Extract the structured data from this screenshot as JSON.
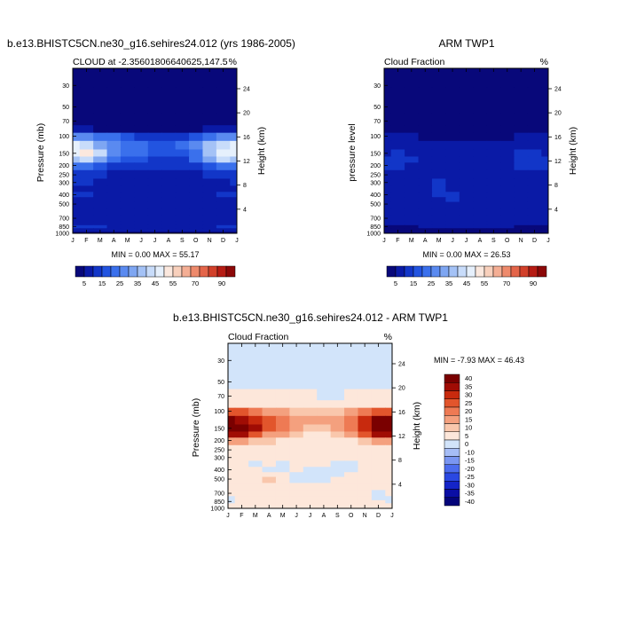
{
  "colors": {
    "sequential": [
      "#08087a",
      "#0a1aa6",
      "#1236c8",
      "#2254e0",
      "#3a70ec",
      "#5a8af0",
      "#7ea6f2",
      "#a4c2f6",
      "#c8dcfa",
      "#e6f0fc",
      "#fbe8de",
      "#f8d0bc",
      "#f4ae94",
      "#ee8a6c",
      "#e4654a",
      "#d2402a",
      "#b61c14",
      "#8c0808"
    ],
    "diverging": [
      "#04047a",
      "#0a0ea4",
      "#1424c8",
      "#2a48e2",
      "#4c6cee",
      "#7a96f2",
      "#a6bdf6",
      "#d2e4fa",
      "#fde7da",
      "#f9c7ac",
      "#f4a07e",
      "#ee7a54",
      "#e2552c",
      "#c82a0e",
      "#a00c04",
      "#7a0000"
    ]
  },
  "panels": [
    {
      "title_main": "b.e13.BHISTC5CN.ne30_g16.sehires24.012 (yrs 1986-2005)",
      "title_left": "CLOUD at -2.35601806640625,147.5",
      "title_right": "%",
      "ylabel": "Pressure (mb)",
      "ylabel_right": "Height (km)",
      "minmax": "MIN =   0.00 MAX =  55.17"
    },
    {
      "title_main": "ARM TWP1",
      "title_left": "Cloud Fraction",
      "title_right": "%",
      "ylabel": "pressure level",
      "ylabel_right": "Height (km)",
      "minmax": "MIN =   0.00 MAX =  26.53"
    },
    {
      "title_main": "b.e13.BHISTC5CN.ne30_g16.sehires24.012 - ARM TWP1",
      "title_left": "Cloud Fraction",
      "title_right": "%",
      "ylabel": "Pressure (mb)",
      "ylabel_right": "Height (km)",
      "minmax": "MIN =  -7.93 MAX =  46.43"
    }
  ],
  "chart_data": [
    {
      "type": "heatmap",
      "title": "CLOUD at -2.35601806640625,147.5",
      "xlabel": "",
      "ylabel": "Pressure (mb)",
      "ylabel_right": "Height (km)",
      "x_ticks": [
        "J",
        "F",
        "M",
        "A",
        "M",
        "J",
        "J",
        "A",
        "S",
        "O",
        "N",
        "D",
        "J"
      ],
      "y_ticks": [
        30,
        50,
        70,
        100,
        150,
        200,
        250,
        300,
        400,
        500,
        700,
        850,
        1000
      ],
      "y_right_ticks": [
        24,
        20,
        16,
        12,
        8,
        4
      ],
      "ylim": [
        1000,
        20
      ],
      "y_scale": "log-pressure",
      "colorbar_labels": [
        "5",
        "15",
        "25",
        "35",
        "45",
        "55",
        "70",
        "90"
      ],
      "levels": [
        0,
        5,
        10,
        15,
        20,
        25,
        30,
        35,
        40,
        45,
        50,
        55,
        60,
        70,
        80,
        90
      ],
      "pressure": [
        20,
        50,
        70,
        85,
        100,
        125,
        150,
        175,
        200,
        250,
        300,
        350,
        400,
        450,
        500,
        600,
        700,
        800,
        850,
        925,
        1000
      ],
      "values": [
        [
          0,
          0,
          0,
          0,
          0,
          0,
          0,
          0,
          0,
          0,
          0,
          0,
          0
        ],
        [
          0,
          0,
          0,
          0,
          0,
          0,
          0,
          0,
          0,
          0,
          0,
          0,
          0
        ],
        [
          1,
          1,
          1,
          1,
          1,
          1,
          1,
          1,
          1,
          1,
          1,
          1,
          1
        ],
        [
          6,
          5,
          4,
          3,
          3,
          3,
          3,
          3,
          3,
          4,
          5,
          6,
          6
        ],
        [
          28,
          27,
          24,
          20,
          16,
          14,
          12,
          12,
          13,
          16,
          22,
          27,
          28
        ],
        [
          45,
          42,
          34,
          27,
          24,
          22,
          18,
          18,
          20,
          26,
          36,
          44,
          45
        ],
        [
          47,
          50,
          40,
          28,
          24,
          20,
          16,
          16,
          18,
          24,
          36,
          48,
          47
        ],
        [
          38,
          40,
          32,
          22,
          18,
          15,
          12,
          12,
          14,
          20,
          30,
          40,
          38
        ],
        [
          22,
          20,
          16,
          14,
          12,
          10,
          10,
          10,
          10,
          12,
          16,
          20,
          22
        ],
        [
          12,
          11,
          10,
          9,
          9,
          9,
          8,
          8,
          9,
          9,
          10,
          11,
          12
        ],
        [
          10,
          10,
          9,
          8,
          7,
          6,
          6,
          6,
          6,
          7,
          8,
          9,
          10
        ],
        [
          9,
          9,
          8,
          7,
          7,
          6,
          6,
          6,
          7,
          7,
          8,
          9,
          9
        ],
        [
          10,
          10,
          9,
          8,
          8,
          7,
          7,
          7,
          8,
          8,
          9,
          10,
          10
        ],
        [
          8,
          8,
          7,
          7,
          6,
          6,
          6,
          6,
          6,
          6,
          7,
          8,
          8
        ],
        [
          8,
          8,
          7,
          7,
          7,
          7,
          7,
          6,
          6,
          7,
          7,
          8,
          8
        ],
        [
          6,
          6,
          6,
          5,
          5,
          5,
          5,
          5,
          5,
          5,
          6,
          6,
          6
        ],
        [
          6,
          6,
          6,
          6,
          5,
          5,
          5,
          5,
          5,
          5,
          5,
          6,
          6
        ],
        [
          8,
          8,
          7,
          7,
          7,
          7,
          6,
          6,
          6,
          7,
          7,
          8,
          8
        ],
        [
          11,
          11,
          10,
          9,
          9,
          8,
          8,
          8,
          8,
          8,
          9,
          10,
          11
        ],
        [
          5,
          5,
          5,
          5,
          5,
          5,
          5,
          5,
          5,
          5,
          5,
          5,
          5
        ],
        [
          1,
          1,
          1,
          1,
          1,
          1,
          1,
          1,
          1,
          1,
          1,
          1,
          1
        ]
      ]
    },
    {
      "type": "heatmap",
      "title": "Cloud Fraction",
      "xlabel": "",
      "ylabel": "pressure level",
      "ylabel_right": "Height (km)",
      "x_ticks": [
        "J",
        "F",
        "M",
        "A",
        "M",
        "J",
        "J",
        "A",
        "S",
        "O",
        "N",
        "D",
        "J"
      ],
      "y_ticks": [
        30,
        50,
        70,
        100,
        150,
        200,
        250,
        300,
        400,
        500,
        700,
        850,
        1000
      ],
      "y_right_ticks": [
        24,
        20,
        16,
        12,
        8,
        4
      ],
      "ylim": [
        1000,
        20
      ],
      "y_scale": "log-pressure",
      "colorbar_labels": [
        "5",
        "15",
        "25",
        "35",
        "45",
        "55",
        "70",
        "90"
      ],
      "levels": [
        0,
        5,
        10,
        15,
        20,
        25,
        30,
        35,
        40,
        45,
        50,
        55,
        60,
        70,
        80,
        90
      ],
      "pressure": [
        20,
        50,
        70,
        85,
        100,
        125,
        150,
        175,
        200,
        250,
        300,
        350,
        400,
        450,
        500,
        600,
        700,
        800,
        850,
        925,
        1000
      ],
      "values": [
        [
          0,
          0,
          0,
          0,
          0,
          0,
          0,
          0,
          0,
          0,
          0,
          0,
          0
        ],
        [
          1,
          1,
          1,
          1,
          1,
          1,
          1,
          1,
          1,
          1,
          1,
          1,
          1
        ],
        [
          2,
          2,
          2,
          2,
          2,
          2,
          2,
          2,
          2,
          2,
          2,
          2,
          2
        ],
        [
          3,
          3,
          3,
          3,
          3,
          3,
          3,
          3,
          3,
          3,
          3,
          3,
          3
        ],
        [
          5,
          5,
          5,
          4,
          4,
          4,
          4,
          4,
          4,
          4,
          5,
          5,
          5
        ],
        [
          8,
          9,
          8,
          7,
          6,
          6,
          6,
          6,
          6,
          7,
          9,
          9,
          8
        ],
        [
          9,
          10,
          9,
          8,
          7,
          7,
          7,
          7,
          7,
          8,
          10,
          10,
          9
        ],
        [
          10,
          11,
          10,
          9,
          8,
          8,
          8,
          8,
          8,
          9,
          11,
          11,
          10
        ],
        [
          10,
          10,
          9,
          9,
          9,
          8,
          8,
          8,
          9,
          9,
          10,
          10,
          10
        ],
        [
          9,
          9,
          9,
          9,
          9,
          9,
          9,
          9,
          8,
          9,
          9,
          9,
          9
        ],
        [
          9,
          9,
          9,
          9,
          10,
          9,
          8,
          8,
          8,
          9,
          9,
          9,
          9
        ],
        [
          9,
          9,
          9,
          9,
          10,
          9,
          9,
          8,
          8,
          9,
          9,
          9,
          9
        ],
        [
          9,
          9,
          9,
          9,
          10,
          10,
          9,
          9,
          9,
          9,
          9,
          9,
          9
        ],
        [
          8,
          8,
          8,
          9,
          9,
          10,
          9,
          9,
          9,
          8,
          8,
          8,
          8
        ],
        [
          8,
          8,
          8,
          8,
          9,
          9,
          9,
          8,
          8,
          8,
          8,
          8,
          8
        ],
        [
          7,
          7,
          7,
          8,
          8,
          9,
          8,
          8,
          8,
          8,
          7,
          7,
          7
        ],
        [
          6,
          6,
          6,
          7,
          7,
          8,
          7,
          7,
          7,
          7,
          6,
          6,
          6
        ],
        [
          5,
          5,
          5,
          6,
          6,
          6,
          6,
          6,
          6,
          6,
          5,
          5,
          5
        ],
        [
          4,
          4,
          4,
          5,
          5,
          5,
          5,
          5,
          5,
          5,
          4,
          4,
          4
        ],
        [
          2,
          2,
          2,
          2,
          2,
          2,
          2,
          2,
          2,
          2,
          2,
          2,
          2
        ],
        [
          1,
          1,
          1,
          1,
          1,
          1,
          1,
          1,
          1,
          1,
          1,
          1,
          1
        ]
      ]
    },
    {
      "type": "heatmap",
      "title": "Cloud Fraction",
      "xlabel": "",
      "ylabel": "Pressure (mb)",
      "ylabel_right": "Height (km)",
      "x_ticks": [
        "J",
        "F",
        "M",
        "A",
        "M",
        "J",
        "J",
        "A",
        "S",
        "O",
        "N",
        "D",
        "J"
      ],
      "y_ticks": [
        30,
        50,
        70,
        100,
        150,
        200,
        250,
        300,
        400,
        500,
        700,
        850,
        1000
      ],
      "y_right_ticks": [
        24,
        20,
        16,
        12,
        8,
        4
      ],
      "ylim": [
        1000,
        20
      ],
      "y_scale": "log-pressure",
      "colorbar_labels": [
        "40",
        "35",
        "30",
        "25",
        "20",
        "15",
        "10",
        "5",
        "0",
        "-10",
        "-15",
        "-20",
        "-25",
        "-30",
        "-35",
        "-40"
      ],
      "levels": [
        -40,
        -35,
        -30,
        -25,
        -20,
        -15,
        -10,
        -5,
        0,
        5,
        10,
        15,
        20,
        25,
        30,
        35,
        40
      ],
      "pressure": [
        20,
        50,
        70,
        85,
        100,
        125,
        150,
        175,
        200,
        250,
        300,
        350,
        400,
        450,
        500,
        600,
        700,
        800,
        850,
        925,
        1000
      ],
      "values": [
        [
          -1,
          -1,
          -1,
          -1,
          -1,
          -1,
          -1,
          -1,
          -1,
          -1,
          -1,
          -1,
          -1
        ],
        [
          -2,
          -2,
          -2,
          -2,
          -2,
          -2,
          -2,
          -2,
          -2,
          -2,
          -2,
          -2,
          -2
        ],
        [
          2,
          2,
          2,
          2,
          2,
          2,
          1,
          -1,
          -1,
          1,
          2,
          2,
          2
        ],
        [
          3,
          3,
          3,
          3,
          3,
          3,
          3,
          3,
          3,
          3,
          3,
          3,
          3
        ],
        [
          20,
          20,
          17,
          14,
          12,
          8,
          6,
          6,
          7,
          10,
          15,
          20,
          20
        ],
        [
          37,
          34,
          26,
          20,
          18,
          14,
          10,
          10,
          12,
          18,
          28,
          36,
          37
        ],
        [
          42,
          44,
          34,
          20,
          16,
          12,
          6,
          6,
          10,
          16,
          28,
          42,
          42
        ],
        [
          33,
          32,
          24,
          12,
          10,
          8,
          4,
          4,
          6,
          12,
          20,
          32,
          33
        ],
        [
          14,
          12,
          8,
          5,
          4,
          3,
          2,
          2,
          2,
          4,
          6,
          10,
          14
        ],
        [
          3,
          2,
          2,
          1,
          1,
          1,
          1,
          1,
          1,
          1,
          2,
          2,
          3
        ],
        [
          1,
          1,
          1,
          1,
          0,
          0,
          1,
          1,
          0,
          1,
          1,
          1,
          1
        ],
        [
          2,
          1,
          -1,
          1,
          -1,
          1,
          1,
          1,
          -1,
          -1,
          1,
          1,
          2
        ],
        [
          2,
          1,
          2,
          -1,
          -1,
          1,
          -2,
          -2,
          -2,
          -2,
          1,
          1,
          2
        ],
        [
          1,
          1,
          2,
          4,
          1,
          -2,
          -3,
          -3,
          -2,
          1,
          1,
          1,
          1
        ],
        [
          0,
          1,
          2,
          6,
          1,
          -1,
          -1,
          -1,
          0,
          1,
          1,
          0,
          0
        ],
        [
          1,
          1,
          1,
          1,
          1,
          1,
          1,
          1,
          1,
          1,
          1,
          1,
          1
        ],
        [
          0,
          1,
          1,
          1,
          1,
          1,
          1,
          1,
          1,
          1,
          1,
          -1,
          0
        ],
        [
          -2,
          1,
          1,
          1,
          1,
          1,
          1,
          1,
          1,
          1,
          1,
          -2,
          -2
        ],
        [
          -2,
          1,
          1,
          1,
          1,
          1,
          1,
          1,
          1,
          1,
          1,
          1,
          -2
        ],
        [
          1,
          1,
          1,
          1,
          1,
          1,
          1,
          1,
          1,
          1,
          1,
          1,
          1
        ],
        [
          0,
          0,
          0,
          0,
          0,
          0,
          0,
          0,
          0,
          0,
          0,
          0,
          0
        ]
      ]
    }
  ]
}
